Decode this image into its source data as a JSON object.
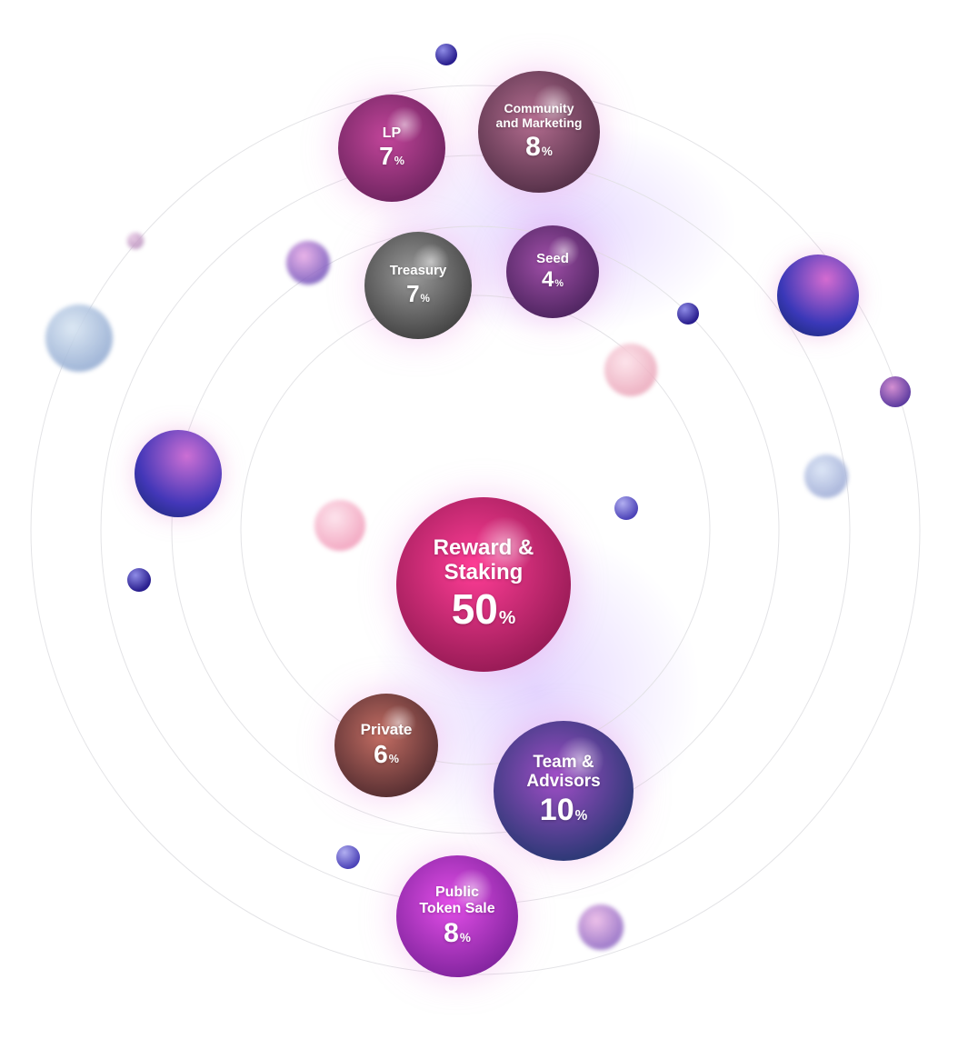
{
  "diagram": {
    "allocations": [
      {
        "id": "lp",
        "name": "LP",
        "value": "7",
        "unit": "%",
        "colors": [
          "#c2459a",
          "#5b1d52"
        ]
      },
      {
        "id": "community",
        "name": "Community\nand Marketing",
        "value": "8",
        "unit": "%",
        "colors": [
          "#b46d90",
          "#3e2237"
        ]
      },
      {
        "id": "treasury",
        "name": "Treasury",
        "value": "7",
        "unit": "%",
        "colors": [
          "#9a9a9a",
          "#2e2e2e"
        ]
      },
      {
        "id": "seed",
        "name": "Seed",
        "value": "4",
        "unit": "%",
        "colors": [
          "#a04fa8",
          "#3b1b4f"
        ]
      },
      {
        "id": "reward",
        "name": "Reward &\nStaking",
        "value": "50",
        "unit": "%",
        "colors": [
          "#ff3d96",
          "#7d1245"
        ]
      },
      {
        "id": "private",
        "name": "Private",
        "value": "6",
        "unit": "%",
        "colors": [
          "#c36d63",
          "#3b1f25"
        ]
      },
      {
        "id": "team",
        "name": "Team &\nAdvisors",
        "value": "10",
        "unit": "%",
        "colors": [
          "#a14ec7",
          "#0d3360"
        ]
      },
      {
        "id": "public",
        "name": "Public\nToken Sale",
        "value": "8",
        "unit": "%",
        "colors": [
          "#e34ee8",
          "#6a1a8c"
        ]
      }
    ],
    "decorative_colors": [
      "#4a3dbd",
      "#c757c9",
      "#f7a5c4",
      "#a9c4de",
      "#2a1f8f"
    ]
  }
}
